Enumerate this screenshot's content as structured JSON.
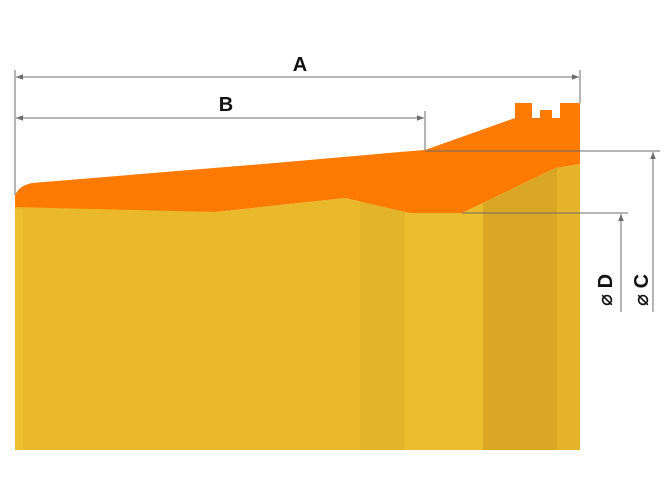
{
  "dimensions": {
    "A": "A",
    "B": "B",
    "C": "C",
    "D": "D",
    "diameter_symbol": "⌀"
  },
  "colors": {
    "body_yellow": "#E9B82B",
    "band_dark": "#D9A727",
    "band_light": "#F0C12E",
    "orange": "#FF7A00",
    "dim_line": "#6b6b6b"
  }
}
